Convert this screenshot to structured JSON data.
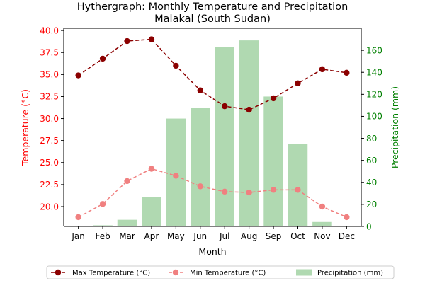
{
  "chart_data": {
    "type": "bar+line",
    "title_line1": "Hythergraph: Monthly Temperature and Precipitation",
    "title_line2": "Malakal (South Sudan)",
    "xlabel": "Month",
    "ylabel_left": "Temperature (°C)",
    "ylabel_right": "Precipitation (mm)",
    "categories": [
      "Jan",
      "Feb",
      "Mar",
      "Apr",
      "May",
      "Jun",
      "Jul",
      "Aug",
      "Sep",
      "Oct",
      "Nov",
      "Dec"
    ],
    "y_left_lim": [
      17.75,
      40.25
    ],
    "y_left_ticks": [
      20.0,
      22.5,
      25.0,
      27.5,
      30.0,
      32.5,
      35.0,
      37.5,
      40.0
    ],
    "y_right_lim": [
      0,
      180
    ],
    "y_right_ticks": [
      0,
      20,
      40,
      60,
      80,
      100,
      120,
      140,
      160
    ],
    "series": [
      {
        "name": "Max Temperature (°C)",
        "kind": "line",
        "axis": "left",
        "color": "#8b0000",
        "dashed": true,
        "values": [
          34.9,
          36.8,
          38.8,
          39.0,
          36.0,
          33.2,
          31.4,
          31.0,
          32.3,
          34.0,
          35.6,
          35.2
        ]
      },
      {
        "name": "Min Temperature (°C)",
        "kind": "line",
        "axis": "left",
        "color": "#f08080",
        "dashed": true,
        "values": [
          18.8,
          20.3,
          22.9,
          24.3,
          23.5,
          22.3,
          21.7,
          21.6,
          21.9,
          21.9,
          20.0,
          18.8
        ]
      },
      {
        "name": "Precipitation (mm)",
        "kind": "bar",
        "axis": "right",
        "color": "#b0d9b1",
        "values": [
          0,
          1,
          6,
          27,
          98,
          108,
          163,
          169,
          118,
          75,
          4,
          0
        ]
      }
    ],
    "left_axis_color": "#ff0000",
    "right_axis_color": "#008000",
    "legend_position": "bottom-center"
  }
}
